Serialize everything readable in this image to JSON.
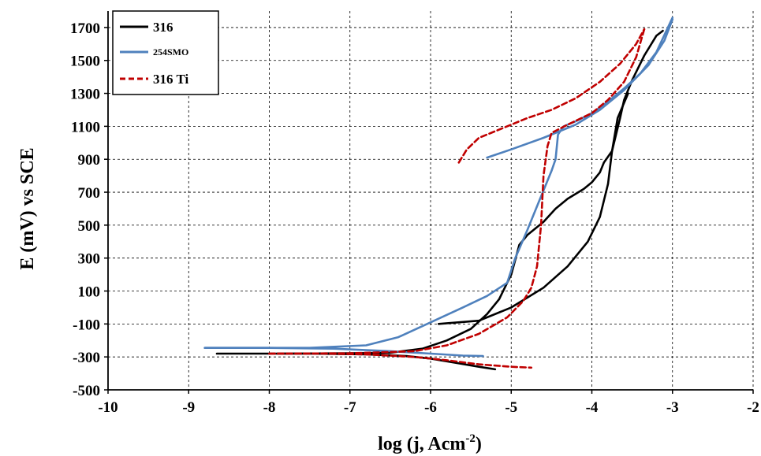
{
  "chart_data": {
    "type": "line",
    "xlabel": "log (j, Acm",
    "xlabel_sup": "-2",
    "xlabel_close": ")",
    "ylabel": "E (mV) vs SCE",
    "xlim": [
      -10,
      -2
    ],
    "ylim": [
      -500,
      1800
    ],
    "x_ticks": [
      -10,
      -9,
      -8,
      -7,
      -6,
      -5,
      -4,
      -3,
      -2
    ],
    "y_ticks": [
      -500,
      -300,
      -100,
      100,
      300,
      500,
      700,
      900,
      1100,
      1300,
      1500,
      1700
    ],
    "grid": true,
    "legend_position": "top-left",
    "series": [
      {
        "name": "316",
        "color": "#000000",
        "style": "solid",
        "points": [
          [
            -8.65,
            -280
          ],
          [
            -7.5,
            -280
          ],
          [
            -6.8,
            -285
          ],
          [
            -6.3,
            -295
          ],
          [
            -6.0,
            -310
          ],
          [
            -5.7,
            -335
          ],
          [
            -5.4,
            -360
          ],
          [
            -5.2,
            -375
          ]
        ]
      },
      {
        "name": "316",
        "color": "#000000",
        "style": "solid",
        "points": [
          [
            -7.9,
            -280
          ],
          [
            -7.0,
            -278
          ],
          [
            -6.5,
            -275
          ],
          [
            -6.1,
            -250
          ],
          [
            -5.8,
            -200
          ],
          [
            -5.5,
            -130
          ],
          [
            -5.3,
            -40
          ],
          [
            -5.15,
            50
          ],
          [
            -5.0,
            200
          ],
          [
            -4.9,
            380
          ],
          [
            -4.8,
            440
          ],
          [
            -4.6,
            520
          ],
          [
            -4.45,
            600
          ],
          [
            -4.3,
            660
          ],
          [
            -4.1,
            720
          ],
          [
            -4.0,
            760
          ],
          [
            -3.9,
            820
          ],
          [
            -3.85,
            880
          ],
          [
            -3.75,
            950
          ],
          [
            -3.7,
            1050
          ],
          [
            -3.65,
            1150
          ],
          [
            -3.6,
            1260
          ],
          [
            -3.5,
            1380
          ],
          [
            -3.35,
            1530
          ],
          [
            -3.2,
            1650
          ],
          [
            -3.12,
            1680
          ]
        ]
      },
      {
        "name": "316",
        "color": "#000000",
        "style": "solid",
        "points": [
          [
            -5.9,
            -100
          ],
          [
            -5.4,
            -80
          ],
          [
            -5.0,
            0
          ],
          [
            -4.6,
            120
          ],
          [
            -4.3,
            250
          ],
          [
            -4.05,
            400
          ],
          [
            -3.9,
            550
          ],
          [
            -3.8,
            750
          ],
          [
            -3.75,
            950
          ],
          [
            -3.68,
            1150
          ],
          [
            -3.55,
            1300
          ]
        ]
      },
      {
        "name": "254SMO",
        "color": "#4f81bd",
        "style": "solid",
        "points": [
          [
            -8.8,
            -245
          ],
          [
            -7.5,
            -245
          ],
          [
            -6.8,
            -230
          ],
          [
            -6.4,
            -180
          ],
          [
            -6.0,
            -90
          ],
          [
            -5.6,
            0
          ],
          [
            -5.3,
            70
          ],
          [
            -5.05,
            150
          ],
          [
            -4.95,
            300
          ],
          [
            -4.8,
            470
          ],
          [
            -4.65,
            650
          ],
          [
            -4.5,
            830
          ],
          [
            -4.45,
            900
          ],
          [
            -4.42,
            1050
          ],
          [
            -4.35,
            1100
          ],
          [
            -4.2,
            1130
          ],
          [
            -4.0,
            1180
          ],
          [
            -3.8,
            1250
          ],
          [
            -3.6,
            1330
          ],
          [
            -3.4,
            1420
          ],
          [
            -3.2,
            1550
          ],
          [
            -3.0,
            1760
          ]
        ]
      },
      {
        "name": "254SMO",
        "color": "#4f81bd",
        "style": "solid",
        "points": [
          [
            -8.8,
            -245
          ],
          [
            -8.0,
            -245
          ],
          [
            -7.2,
            -250
          ],
          [
            -6.5,
            -265
          ],
          [
            -6.0,
            -280
          ],
          [
            -5.6,
            -292
          ],
          [
            -5.35,
            -295
          ]
        ]
      },
      {
        "name": "254SMO",
        "color": "#4f81bd",
        "style": "solid",
        "points": [
          [
            -5.3,
            910
          ],
          [
            -5.0,
            960
          ],
          [
            -4.6,
            1030
          ],
          [
            -4.2,
            1110
          ],
          [
            -3.9,
            1200
          ],
          [
            -3.6,
            1320
          ],
          [
            -3.3,
            1470
          ],
          [
            -3.1,
            1620
          ],
          [
            -3.0,
            1750
          ]
        ]
      },
      {
        "name": "316 Ti",
        "color": "#c00000",
        "style": "dashed",
        "points": [
          [
            -8.0,
            -280
          ],
          [
            -7.3,
            -280
          ],
          [
            -6.8,
            -285
          ],
          [
            -6.2,
            -300
          ],
          [
            -5.8,
            -320
          ],
          [
            -5.4,
            -345
          ],
          [
            -5.0,
            -360
          ],
          [
            -4.75,
            -365
          ]
        ]
      },
      {
        "name": "316 Ti",
        "color": "#c00000",
        "style": "dashed",
        "points": [
          [
            -8.0,
            -280
          ],
          [
            -7.0,
            -278
          ],
          [
            -6.2,
            -265
          ],
          [
            -5.8,
            -230
          ],
          [
            -5.4,
            -160
          ],
          [
            -5.05,
            -60
          ],
          [
            -4.85,
            40
          ],
          [
            -4.75,
            120
          ],
          [
            -4.68,
            250
          ],
          [
            -4.63,
            500
          ],
          [
            -4.6,
            800
          ],
          [
            -4.55,
            980
          ],
          [
            -4.5,
            1060
          ],
          [
            -4.3,
            1110
          ],
          [
            -4.0,
            1180
          ],
          [
            -3.8,
            1260
          ],
          [
            -3.6,
            1370
          ],
          [
            -3.45,
            1520
          ],
          [
            -3.35,
            1690
          ]
        ]
      },
      {
        "name": "316 Ti",
        "color": "#c00000",
        "style": "dashed",
        "points": [
          [
            -5.65,
            880
          ],
          [
            -5.55,
            960
          ],
          [
            -5.4,
            1030
          ],
          [
            -5.15,
            1080
          ],
          [
            -4.8,
            1150
          ],
          [
            -4.5,
            1200
          ],
          [
            -4.2,
            1270
          ],
          [
            -3.9,
            1370
          ],
          [
            -3.65,
            1480
          ],
          [
            -3.45,
            1600
          ],
          [
            -3.35,
            1690
          ]
        ]
      }
    ]
  }
}
